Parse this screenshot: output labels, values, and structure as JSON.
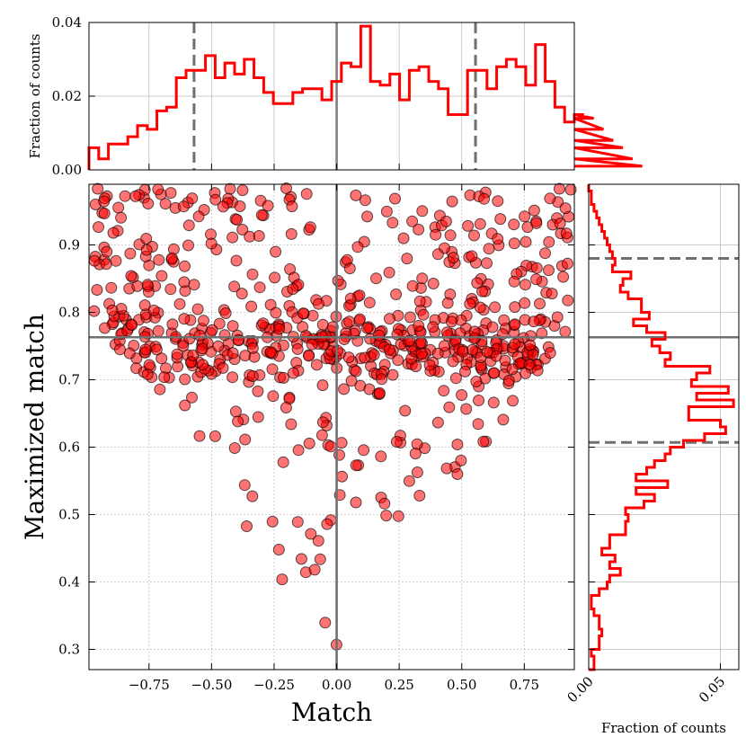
{
  "chart_data": [
    {
      "type": "scatter",
      "name": "main-scatter",
      "xlabel": "Match",
      "ylabel": "Maximized match",
      "xlim": [
        -0.99,
        0.95
      ],
      "ylim": [
        0.27,
        0.99
      ],
      "xticks": [
        -0.75,
        -0.5,
        -0.25,
        0.0,
        0.25,
        0.5,
        0.75
      ],
      "xtick_labels": [
        "−0.75",
        "−0.50",
        "−0.25",
        "0.00",
        "0.25",
        "0.50",
        "0.75"
      ],
      "yticks": [
        0.3,
        0.4,
        0.5,
        0.6,
        0.7,
        0.8,
        0.9
      ],
      "ytick_labels": [
        "0.3",
        "0.4",
        "0.5",
        "0.6",
        "0.7",
        "0.8",
        "0.9"
      ],
      "marker_color": "#ff0000",
      "reference_lines": {
        "vertical_x": 0.0,
        "horizontal_y": 0.763
      },
      "note": "approximately 700 points forming a V shape; y lower bound rises linearly with |x|, dense band near y 0.72-0.76",
      "points": []
    },
    {
      "type": "histogram",
      "name": "top-histogram",
      "ylabel": "Fraction of counts",
      "ylim": [
        0.0,
        0.04
      ],
      "yticks": [
        0.0,
        0.02,
        0.04
      ],
      "ytick_labels": [
        "0.00",
        "0.02",
        "0.04"
      ],
      "line_color": "#ff0000",
      "bin_edges_start": -0.99,
      "bin_width": 0.0388,
      "values": [
        0.006,
        0.003,
        0.007,
        0.007,
        0.009,
        0.012,
        0.011,
        0.016,
        0.017,
        0.025,
        0.027,
        0.027,
        0.031,
        0.025,
        0.029,
        0.026,
        0.03,
        0.025,
        0.021,
        0.018,
        0.018,
        0.021,
        0.022,
        0.022,
        0.019,
        0.024,
        0.029,
        0.028,
        0.039,
        0.024,
        0.023,
        0.026,
        0.019,
        0.027,
        0.028,
        0.024,
        0.022,
        0.015,
        0.015,
        0.027,
        0.027,
        0.022,
        0.028,
        0.03,
        0.028,
        0.023,
        0.034,
        0.024,
        0.017,
        0.013,
        0.015,
        0.015,
        0.014,
        0.011,
        0.008,
        0.006,
        0.003,
        0.001
      ],
      "dashed_lines_x": [
        -0.57,
        0.555
      ],
      "solid_line_x": 0.0
    },
    {
      "type": "histogram",
      "name": "right-histogram",
      "orientation": "horizontal",
      "xlabel": "Fraction of counts",
      "xlim": [
        0.0,
        0.057
      ],
      "xticks": [
        0.0,
        0.05
      ],
      "xtick_labels": [
        "0.00",
        "0.05"
      ],
      "line_color": "#ff0000",
      "bin_edges_start": 0.27,
      "bin_width": 0.01,
      "values": [
        0.002,
        0.002,
        0.001,
        0.004,
        0.004,
        0.005,
        0.004,
        0.004,
        0.002,
        0.001,
        0.001,
        0.004,
        0.007,
        0.008,
        0.012,
        0.008,
        0.01,
        0.005,
        0.008,
        0.008,
        0.014,
        0.014,
        0.015,
        0.014,
        0.021,
        0.025,
        0.018,
        0.03,
        0.018,
        0.022,
        0.025,
        0.029,
        0.031,
        0.036,
        0.044,
        0.052,
        0.05,
        0.038,
        0.038,
        0.055,
        0.041,
        0.053,
        0.039,
        0.041,
        0.046,
        0.029,
        0.031,
        0.027,
        0.024,
        0.029,
        0.022,
        0.017,
        0.023,
        0.02,
        0.02,
        0.015,
        0.012,
        0.013,
        0.016,
        0.009,
        0.01,
        0.009,
        0.008,
        0.007,
        0.006,
        0.005,
        0.004,
        0.003,
        0.002,
        0.001,
        0.001,
        0.0
      ],
      "dashed_lines_y": [
        0.607,
        0.88
      ],
      "solid_line_y": 0.763
    }
  ]
}
